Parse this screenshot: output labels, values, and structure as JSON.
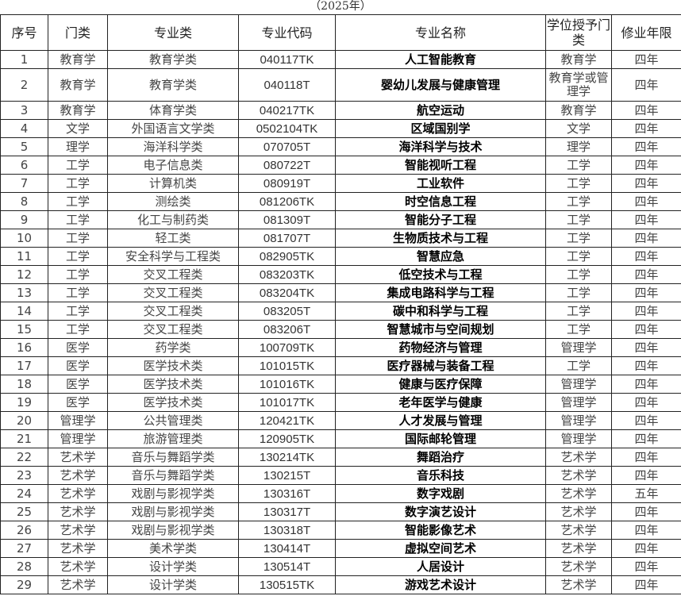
{
  "title": "（2025年）",
  "headers": [
    "序号",
    "门类",
    "专业类",
    "专业代码",
    "专业名称",
    "学位授予门类",
    "修业年限"
  ],
  "rows": [
    [
      "1",
      "教育学",
      "教育学类",
      "040117TK",
      "人工智能教育",
      "教育学",
      "四年"
    ],
    [
      "2",
      "教育学",
      "教育学类",
      "040118T",
      "婴幼儿发展与健康管理",
      "教育学或管理学",
      "四年"
    ],
    [
      "3",
      "教育学",
      "体育学类",
      "040217TK",
      "航空运动",
      "教育学",
      "四年"
    ],
    [
      "4",
      "文学",
      "外国语言文学类",
      "0502104TK",
      "区域国别学",
      "文学",
      "四年"
    ],
    [
      "5",
      "理学",
      "海洋科学类",
      "070705T",
      "海洋科学与技术",
      "理学",
      "四年"
    ],
    [
      "6",
      "工学",
      "电子信息类",
      "080722T",
      "智能视听工程",
      "工学",
      "四年"
    ],
    [
      "7",
      "工学",
      "计算机类",
      "080919T",
      "工业软件",
      "工学",
      "四年"
    ],
    [
      "8",
      "工学",
      "测绘类",
      "081206TK",
      "时空信息工程",
      "工学",
      "四年"
    ],
    [
      "9",
      "工学",
      "化工与制药类",
      "081309T",
      "智能分子工程",
      "工学",
      "四年"
    ],
    [
      "10",
      "工学",
      "轻工类",
      "081707T",
      "生物质技术与工程",
      "工学",
      "四年"
    ],
    [
      "11",
      "工学",
      "安全科学与工程类",
      "082905TK",
      "智慧应急",
      "工学",
      "四年"
    ],
    [
      "12",
      "工学",
      "交叉工程类",
      "083203TK",
      "低空技术与工程",
      "工学",
      "四年"
    ],
    [
      "13",
      "工学",
      "交叉工程类",
      "083204TK",
      "集成电路科学与工程",
      "工学",
      "四年"
    ],
    [
      "14",
      "工学",
      "交叉工程类",
      "083205T",
      "碳中和科学与工程",
      "工学",
      "四年"
    ],
    [
      "15",
      "工学",
      "交叉工程类",
      "083206T",
      "智慧城市与空间规划",
      "工学",
      "四年"
    ],
    [
      "16",
      "医学",
      "药学类",
      "100709TK",
      "药物经济与管理",
      "管理学",
      "四年"
    ],
    [
      "17",
      "医学",
      "医学技术类",
      "101015TK",
      "医疗器械与装备工程",
      "工学",
      "四年"
    ],
    [
      "18",
      "医学",
      "医学技术类",
      "101016TK",
      "健康与医疗保障",
      "管理学",
      "四年"
    ],
    [
      "19",
      "医学",
      "医学技术类",
      "101017TK",
      "老年医学与健康",
      "管理学",
      "四年"
    ],
    [
      "20",
      "管理学",
      "公共管理类",
      "120421TK",
      "人才发展与管理",
      "管理学",
      "四年"
    ],
    [
      "21",
      "管理学",
      "旅游管理类",
      "120905TK",
      "国际邮轮管理",
      "管理学",
      "四年"
    ],
    [
      "22",
      "艺术学",
      "音乐与舞蹈学类",
      "130214TK",
      "舞蹈治疗",
      "艺术学",
      "四年"
    ],
    [
      "23",
      "艺术学",
      "音乐与舞蹈学类",
      "130215T",
      "音乐科技",
      "艺术学",
      "四年"
    ],
    [
      "24",
      "艺术学",
      "戏剧与影视学类",
      "130316T",
      "数字戏剧",
      "艺术学",
      "五年"
    ],
    [
      "25",
      "艺术学",
      "戏剧与影视学类",
      "130317T",
      "数字演艺设计",
      "艺术学",
      "四年"
    ],
    [
      "26",
      "艺术学",
      "戏剧与影视学类",
      "130318T",
      "智能影像艺术",
      "艺术学",
      "四年"
    ],
    [
      "27",
      "艺术学",
      "美术学类",
      "130414T",
      "虚拟空间艺术",
      "艺术学",
      "四年"
    ],
    [
      "28",
      "艺术学",
      "设计学类",
      "130514T",
      "人居设计",
      "艺术学",
      "四年"
    ],
    [
      "29",
      "艺术学",
      "设计学类",
      "130515TK",
      "游戏艺术设计",
      "艺术学",
      "四年"
    ]
  ]
}
